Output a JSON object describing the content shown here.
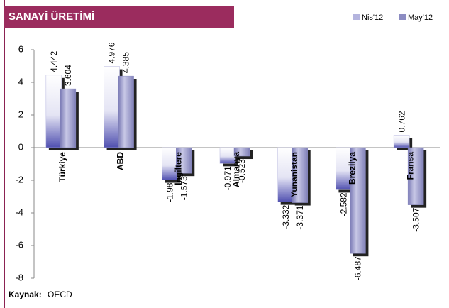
{
  "chart_data": {
    "type": "bar",
    "title": "SANAYİ ÜRETİMİ",
    "categories": [
      "Türkiye",
      "ABD",
      "İngiltere",
      "Almanya",
      "Yunanistan",
      "Brezilya",
      "Fransa"
    ],
    "series": [
      {
        "name": "Nis'12",
        "color": "#b4b4de",
        "values": [
          4.442,
          4.976,
          -1.98,
          -0.971,
          -3.332,
          -2.582,
          0.762
        ]
      },
      {
        "name": "May'12",
        "color": "#8c8cc2",
        "values": [
          3.604,
          4.385,
          -1.573,
          -0.523,
          -3.371,
          -6.487,
          -3.507
        ]
      }
    ],
    "ylim": [
      -8,
      6
    ],
    "yticks": [
      -8,
      -6,
      -4,
      -2,
      0,
      2,
      4,
      6
    ],
    "source_label": "Kaynak:",
    "source": "OECD"
  }
}
